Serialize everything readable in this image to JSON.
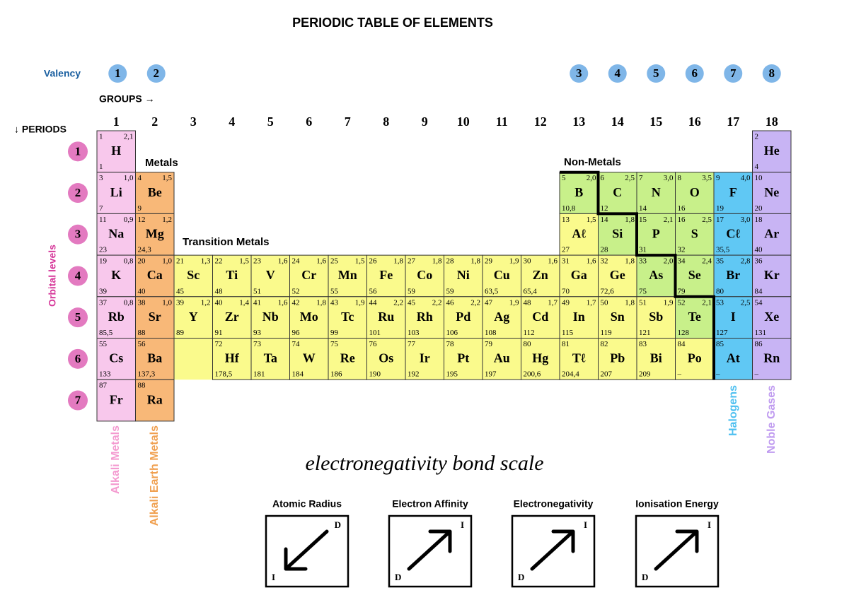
{
  "title": "PERIODIC TABLE OF ELEMENTS",
  "valency_label": "Valency",
  "valency": [
    1,
    2,
    3,
    4,
    5,
    6,
    7,
    8
  ],
  "groups_label": "GROUPS →",
  "groups": [
    1,
    2,
    3,
    4,
    5,
    6,
    7,
    8,
    9,
    10,
    11,
    12,
    13,
    14,
    15,
    16,
    17,
    18
  ],
  "periods_label": "↓ PERIODS",
  "periods": [
    1,
    2,
    3,
    4,
    5,
    6,
    7
  ],
  "orbital_label": "Orbital levels",
  "region_labels": {
    "metals": "Metals",
    "non_metals": "Non-Metals",
    "transition": "Transition Metals"
  },
  "family_labels": {
    "alkali": "Alkali Metals",
    "alkali_earth": "Alkali Earth Metals",
    "halogens": "Halogens",
    "noble": "Noble Gases"
  },
  "table": {
    "rows": [
      [
        {
          "n": 1,
          "en": "2,1",
          "s": "H",
          "m": "1"
        },
        null,
        null,
        null,
        null,
        null,
        null,
        null,
        null,
        null,
        null,
        null,
        null,
        null,
        null,
        null,
        null,
        {
          "n": 2,
          "s": "He",
          "m": "4"
        }
      ],
      [
        {
          "n": 3,
          "en": "1,0",
          "s": "Li",
          "m": "7"
        },
        {
          "n": 4,
          "en": "1,5",
          "s": "Be",
          "m": "9"
        },
        null,
        null,
        null,
        null,
        null,
        null,
        null,
        null,
        null,
        null,
        {
          "n": 5,
          "en": "2,0",
          "s": "B",
          "m": "10,8"
        },
        {
          "n": 6,
          "en": "2,5",
          "s": "C",
          "m": "12"
        },
        {
          "n": 7,
          "en": "3,0",
          "s": "N",
          "m": "14"
        },
        {
          "n": 8,
          "en": "3,5",
          "s": "O",
          "m": "16"
        },
        {
          "n": 9,
          "en": "4,0",
          "s": "F",
          "m": "19"
        },
        {
          "n": 10,
          "s": "Ne",
          "m": "20"
        }
      ],
      [
        {
          "n": 11,
          "en": "0,9",
          "s": "Na",
          "m": "23"
        },
        {
          "n": 12,
          "en": "1,2",
          "s": "Mg",
          "m": "24,3"
        },
        null,
        null,
        null,
        null,
        null,
        null,
        null,
        null,
        null,
        null,
        {
          "n": 13,
          "en": "1,5",
          "s": "Aℓ",
          "m": "27"
        },
        {
          "n": 14,
          "en": "1,8",
          "s": "Si",
          "m": "28"
        },
        {
          "n": 15,
          "en": "2,1",
          "s": "P",
          "m": "31"
        },
        {
          "n": 16,
          "en": "2,5",
          "s": "S",
          "m": "32"
        },
        {
          "n": 17,
          "en": "3,0",
          "s": "Cℓ",
          "m": "35,5"
        },
        {
          "n": 18,
          "s": "Ar",
          "m": "40"
        }
      ],
      [
        {
          "n": 19,
          "en": "0,8",
          "s": "K",
          "m": "39"
        },
        {
          "n": 20,
          "en": "1,0",
          "s": "Ca",
          "m": "40"
        },
        {
          "n": 21,
          "en": "1,3",
          "s": "Sc",
          "m": "45"
        },
        {
          "n": 22,
          "en": "1,5",
          "s": "Ti",
          "m": "48"
        },
        {
          "n": 23,
          "en": "1,6",
          "s": "V",
          "m": "51"
        },
        {
          "n": 24,
          "en": "1,6",
          "s": "Cr",
          "m": "52"
        },
        {
          "n": 25,
          "en": "1,5",
          "s": "Mn",
          "m": "55"
        },
        {
          "n": 26,
          "en": "1,8",
          "s": "Fe",
          "m": "56"
        },
        {
          "n": 27,
          "en": "1,8",
          "s": "Co",
          "m": "59"
        },
        {
          "n": 28,
          "en": "1,8",
          "s": "Ni",
          "m": "59"
        },
        {
          "n": 29,
          "en": "1,9",
          "s": "Cu",
          "m": "63,5"
        },
        {
          "n": 30,
          "en": "1,6",
          "s": "Zn",
          "m": "65,4"
        },
        {
          "n": 31,
          "en": "1,6",
          "s": "Ga",
          "m": "70"
        },
        {
          "n": 32,
          "en": "1,8",
          "s": "Ge",
          "m": "72,6"
        },
        {
          "n": 33,
          "en": "2,0",
          "s": "As",
          "m": "75"
        },
        {
          "n": 34,
          "en": "2,4",
          "s": "Se",
          "m": "79"
        },
        {
          "n": 35,
          "en": "2,8",
          "s": "Br",
          "m": "80"
        },
        {
          "n": 36,
          "s": "Kr",
          "m": "84"
        }
      ],
      [
        {
          "n": 37,
          "en": "0,8",
          "s": "Rb",
          "m": "85,5"
        },
        {
          "n": 38,
          "en": "1,0",
          "s": "Sr",
          "m": "88"
        },
        {
          "n": 39,
          "en": "1,2",
          "s": "Y",
          "m": "89"
        },
        {
          "n": 40,
          "en": "1,4",
          "s": "Zr",
          "m": "91"
        },
        {
          "n": 41,
          "en": "1,6",
          "s": "Nb",
          "m": "93"
        },
        {
          "n": 42,
          "en": "1,8",
          "s": "Mo",
          "m": "96"
        },
        {
          "n": 43,
          "en": "1,9",
          "s": "Tc",
          "m": "99"
        },
        {
          "n": 44,
          "en": "2,2",
          "s": "Ru",
          "m": "101"
        },
        {
          "n": 45,
          "en": "2,2",
          "s": "Rh",
          "m": "103"
        },
        {
          "n": 46,
          "en": "2,2",
          "s": "Pd",
          "m": "106"
        },
        {
          "n": 47,
          "en": "1,9",
          "s": "Ag",
          "m": "108"
        },
        {
          "n": 48,
          "en": "1,7",
          "s": "Cd",
          "m": "112"
        },
        {
          "n": 49,
          "en": "1,7",
          "s": "In",
          "m": "115"
        },
        {
          "n": 50,
          "en": "1,8",
          "s": "Sn",
          "m": "119"
        },
        {
          "n": 51,
          "en": "1,9",
          "s": "Sb",
          "m": "121"
        },
        {
          "n": 52,
          "en": "2,1",
          "s": "Te",
          "m": "128"
        },
        {
          "n": 53,
          "en": "2,5",
          "s": "I",
          "m": "127"
        },
        {
          "n": 54,
          "s": "Xe",
          "m": "131"
        }
      ],
      [
        {
          "n": 55,
          "s": "Cs",
          "m": "133"
        },
        {
          "n": 56,
          "s": "Ba",
          "m": "137,3"
        },
        null,
        {
          "n": 72,
          "s": "Hf",
          "m": "178,5"
        },
        {
          "n": 73,
          "s": "Ta",
          "m": "181"
        },
        {
          "n": 74,
          "s": "W",
          "m": "184"
        },
        {
          "n": 75,
          "s": "Re",
          "m": "186"
        },
        {
          "n": 76,
          "s": "Os",
          "m": "190"
        },
        {
          "n": 77,
          "s": "Ir",
          "m": "192"
        },
        {
          "n": 78,
          "s": "Pt",
          "m": "195"
        },
        {
          "n": 79,
          "s": "Au",
          "m": "197"
        },
        {
          "n": 80,
          "s": "Hg",
          "m": "200,6"
        },
        {
          "n": 81,
          "s": "Tℓ",
          "m": "204,4"
        },
        {
          "n": 82,
          "s": "Pb",
          "m": "207"
        },
        {
          "n": 83,
          "s": "Bi",
          "m": "209"
        },
        {
          "n": 84,
          "s": "Po",
          "m": "–"
        },
        {
          "n": 85,
          "s": "At",
          "m": "–"
        },
        {
          "n": 86,
          "s": "Rn",
          "m": "–"
        }
      ],
      [
        {
          "n": 87,
          "s": "Fr"
        },
        {
          "n": 88,
          "s": "Ra"
        }
      ]
    ]
  },
  "scale_caption": "electronegativity bond scale",
  "trends": [
    {
      "title": "Atomic Radius",
      "top": "D",
      "bottom": "I"
    },
    {
      "title": "Electron Affinity",
      "top": "I",
      "bottom": "D"
    },
    {
      "title": "Electronegativity",
      "top": "I",
      "bottom": "D"
    },
    {
      "title": "Ionisation Energy",
      "top": "I",
      "bottom": "D"
    }
  ]
}
